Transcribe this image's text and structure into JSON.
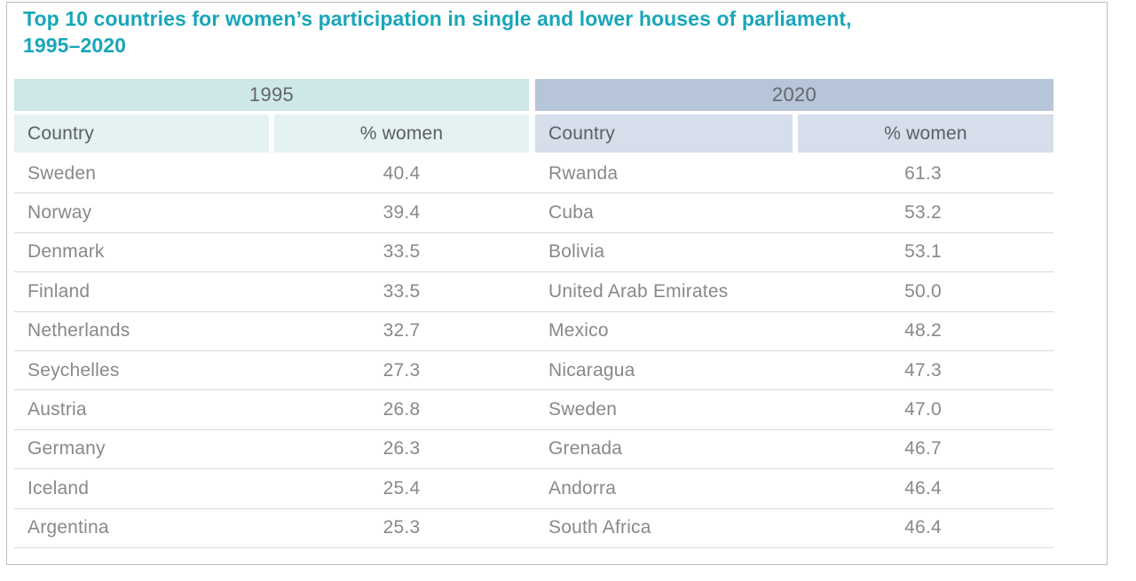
{
  "title": {
    "line1": "Top 10 countries for women’s participation in single and lower houses of parliament,",
    "line2": "1995–2020"
  },
  "colors": {
    "title_teal": "#18a6b9",
    "band_1995": "#cee8e8",
    "subheader_1995": "#e4f2f1",
    "band_2020": "#b6c5d8",
    "subheader_2020": "#d7deeb",
    "header_text": "#5c5f63",
    "body_text": "#87898c",
    "divider": "#d9d9d9"
  },
  "chart_data": {
    "type": "table",
    "title": "Top 10 countries for women’s participation in single and lower houses of parliament, 1995–2020",
    "groups": [
      {
        "year": "1995",
        "country_header": "Country",
        "pct_header": "% women",
        "rows": [
          {
            "country": "Sweden",
            "pct": "40.4"
          },
          {
            "country": "Norway",
            "pct": "39.4"
          },
          {
            "country": "Denmark",
            "pct": "33.5"
          },
          {
            "country": "Finland",
            "pct": "33.5"
          },
          {
            "country": "Netherlands",
            "pct": "32.7"
          },
          {
            "country": "Seychelles",
            "pct": "27.3"
          },
          {
            "country": "Austria",
            "pct": "26.8"
          },
          {
            "country": "Germany",
            "pct": "26.3"
          },
          {
            "country": "Iceland",
            "pct": "25.4"
          },
          {
            "country": "Argentina",
            "pct": "25.3"
          }
        ]
      },
      {
        "year": "2020",
        "country_header": "Country",
        "pct_header": "% women",
        "rows": [
          {
            "country": "Rwanda",
            "pct": "61.3"
          },
          {
            "country": "Cuba",
            "pct": "53.2"
          },
          {
            "country": "Bolivia",
            "pct": "53.1"
          },
          {
            "country": "United Arab Emirates",
            "pct": "50.0"
          },
          {
            "country": "Mexico",
            "pct": "48.2"
          },
          {
            "country": "Nicaragua",
            "pct": "47.3"
          },
          {
            "country": "Sweden",
            "pct": "47.0"
          },
          {
            "country": "Grenada",
            "pct": "46.7"
          },
          {
            "country": "Andorra",
            "pct": "46.4"
          },
          {
            "country": "South Africa",
            "pct": "46.4"
          }
        ]
      }
    ]
  }
}
